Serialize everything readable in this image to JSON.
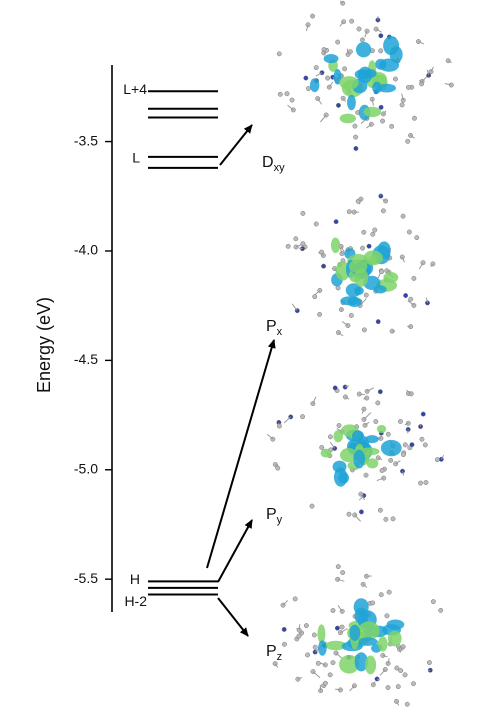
{
  "chart_data": {
    "type": "level",
    "y_label": "Energy (eV)",
    "ylim": [
      -5.65,
      -3.15
    ],
    "yticks": [
      -3.5,
      {
        "value": -4,
        "label": "-4.0"
      },
      -4.5,
      {
        "value": -5,
        "label": "-5.0"
      },
      -5.5
    ],
    "categories": [
      "H-2",
      null,
      "H",
      null,
      "L",
      null,
      null,
      "L+4"
    ],
    "values": [
      -5.57,
      -5.54,
      -5.51,
      -3.62,
      -3.57,
      -3.39,
      -3.35,
      -3.27
    ],
    "color": "#000000",
    "orbitals": [
      {
        "name": "D",
        "sub": "xy"
      },
      {
        "name": "P",
        "sub": "x"
      },
      {
        "name": "P",
        "sub": "y"
      },
      {
        "name": "P",
        "sub": "z"
      }
    ]
  }
}
